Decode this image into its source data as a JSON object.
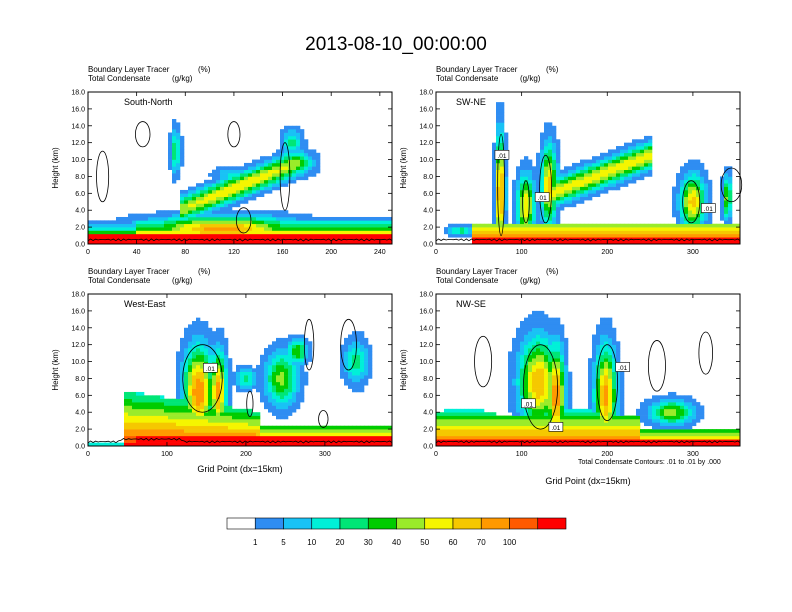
{
  "figure": {
    "title": "2013-08-10_00:00:00",
    "footnote": "Total Condensate Contours: .01 to .01 by .000"
  },
  "panel_header": {
    "line1_name": "Boundary Layer Tracer",
    "line1_unit": "(%)",
    "line2_name": "Total Condensate",
    "line2_unit": "(g/kg)"
  },
  "axis_text": {
    "ylabel": "Height (km)",
    "xlabel": "Grid Point (dx=15km)"
  },
  "colorbar": {
    "levels": [
      "1",
      "5",
      "10",
      "20",
      "30",
      "40",
      "50",
      "60",
      "70",
      "100"
    ],
    "colors": [
      "#ffffff",
      "#2f8df2",
      "#19c2f5",
      "#00f0d8",
      "#00e676",
      "#00cc00",
      "#9aeb2a",
      "#f5f500",
      "#f5c800",
      "#ff9900",
      "#ff5a00",
      "#ff0000"
    ]
  },
  "chart_data": [
    {
      "type": "heatmap",
      "name": "South-North",
      "xlim": [
        0,
        250
      ],
      "xticks": [
        "0",
        "40",
        "80",
        "120",
        "160",
        "200",
        "240"
      ],
      "xtick_values": [
        0,
        40,
        80,
        120,
        160,
        200,
        240
      ],
      "ylim": [
        0,
        18
      ],
      "yticks": [
        "0.0",
        "2.0",
        "4.0",
        "6.0",
        "8.0",
        "10.0",
        "12.0",
        "14.0",
        "16.0",
        "18.0"
      ],
      "ytick_values": [
        0,
        2,
        4,
        6,
        8,
        10,
        12,
        14,
        16,
        18
      ],
      "contour_labels": []
    },
    {
      "type": "heatmap",
      "name": "SW-NE",
      "xlim": [
        0,
        355
      ],
      "xticks": [
        "0",
        "100",
        "200",
        "300"
      ],
      "xtick_values": [
        0,
        100,
        200,
        300
      ],
      "ylim": [
        0,
        18
      ],
      "yticks": [
        "0.0",
        "2.0",
        "4.0",
        "6.0",
        "8.0",
        "10.0",
        "12.0",
        "14.0",
        "16.0",
        "18.0"
      ],
      "ytick_values": [
        0,
        2,
        4,
        6,
        8,
        10,
        12,
        14,
        16,
        18
      ],
      "contour_labels": [
        {
          "text": ".01",
          "x": 77,
          "y": 10.5
        },
        {
          "text": ".01",
          "x": 124,
          "y": 5.5
        },
        {
          "text": ".01",
          "x": 318,
          "y": 4.2
        }
      ]
    },
    {
      "type": "heatmap",
      "name": "West-East",
      "xlim": [
        0,
        385
      ],
      "xticks": [
        "0",
        "100",
        "200",
        "300"
      ],
      "xtick_values": [
        0,
        100,
        200,
        300
      ],
      "ylim": [
        0,
        18
      ],
      "yticks": [
        "0.0",
        "2.0",
        "4.0",
        "6.0",
        "8.0",
        "10.0",
        "12.0",
        "14.0",
        "16.0",
        "18.0"
      ],
      "ytick_values": [
        0,
        2,
        4,
        6,
        8,
        10,
        12,
        14,
        16,
        18
      ],
      "contour_labels": [
        {
          "text": ".01",
          "x": 155,
          "y": 9.2
        }
      ]
    },
    {
      "type": "heatmap",
      "name": "NW-SE",
      "xlim": [
        0,
        355
      ],
      "xticks": [
        "0",
        "100",
        "200",
        "300"
      ],
      "xtick_values": [
        0,
        100,
        200,
        300
      ],
      "ylim": [
        0,
        18
      ],
      "yticks": [
        "0.0",
        "2.0",
        "4.0",
        "6.0",
        "8.0",
        "10.0",
        "12.0",
        "14.0",
        "16.0",
        "18.0"
      ],
      "ytick_values": [
        0,
        2,
        4,
        6,
        8,
        10,
        12,
        14,
        16,
        18
      ],
      "contour_labels": [
        {
          "text": ".01",
          "x": 108,
          "y": 5.0
        },
        {
          "text": ".01",
          "x": 140,
          "y": 2.2
        },
        {
          "text": ".01",
          "x": 218,
          "y": 9.3
        }
      ]
    }
  ]
}
